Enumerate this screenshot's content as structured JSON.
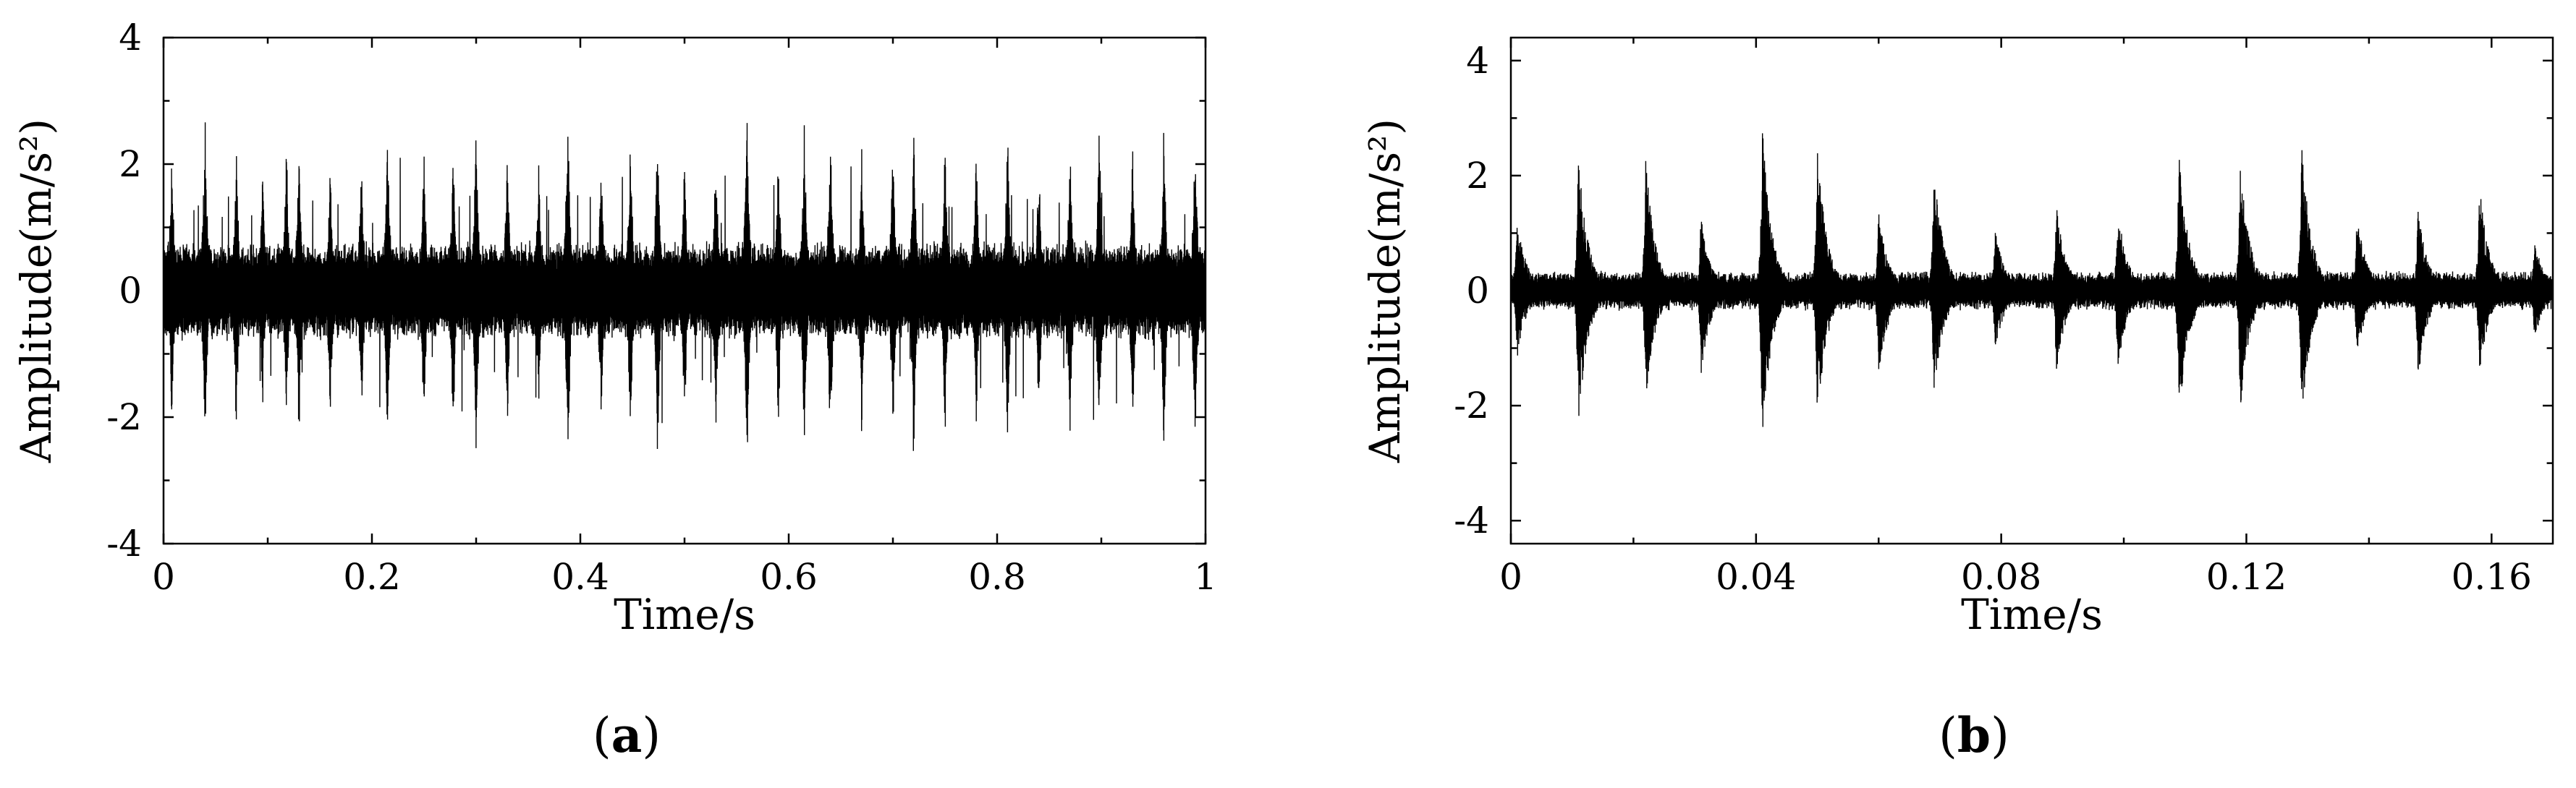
{
  "chart_data": [
    {
      "type": "line",
      "panel_label": "a",
      "xlabel": "Time/s",
      "ylabel": "Amplitude(m/s²)",
      "xlim": [
        0,
        1
      ],
      "ylim": [
        -4,
        4
      ],
      "x_ticks": [
        "0",
        "0.2",
        "0.4",
        "0.6",
        "0.8",
        "1"
      ],
      "x_tick_values": [
        0,
        0.2,
        0.4,
        0.6,
        0.8,
        1
      ],
      "y_ticks": [
        "4",
        "2",
        "0",
        "-2",
        "-4"
      ],
      "y_tick_values": [
        4,
        2,
        0,
        -2,
        -4
      ],
      "series": [
        {
          "signal": "vibration acceleration waveform",
          "duration": 1,
          "baseline_amplitude": 0.8,
          "peak_max": 3.3,
          "peak_min": -3.0,
          "impact_peaks": [
            {
              "t": 0.008,
              "a": 2.4
            },
            {
              "t": 0.04,
              "a": 2.95
            },
            {
              "t": 0.07,
              "a": 2.6
            },
            {
              "t": 0.095,
              "a": 2.1
            },
            {
              "t": 0.118,
              "a": 2.5
            },
            {
              "t": 0.13,
              "a": 2.7
            },
            {
              "t": 0.16,
              "a": 2.2
            },
            {
              "t": 0.19,
              "a": 2.3
            },
            {
              "t": 0.215,
              "a": 2.9
            },
            {
              "t": 0.25,
              "a": 2.5
            },
            {
              "t": 0.278,
              "a": 2.6
            },
            {
              "t": 0.3,
              "a": 2.95
            },
            {
              "t": 0.33,
              "a": 2.4
            },
            {
              "t": 0.36,
              "a": 2.2
            },
            {
              "t": 0.388,
              "a": 3.2
            },
            {
              "t": 0.42,
              "a": 2.5
            },
            {
              "t": 0.448,
              "a": 2.7
            },
            {
              "t": 0.474,
              "a": 3.0
            },
            {
              "t": 0.5,
              "a": 2.3
            },
            {
              "t": 0.53,
              "a": 2.6
            },
            {
              "t": 0.56,
              "a": 3.3
            },
            {
              "t": 0.59,
              "a": 2.5
            },
            {
              "t": 0.615,
              "a": 2.9
            },
            {
              "t": 0.64,
              "a": 2.95
            },
            {
              "t": 0.67,
              "a": 2.4
            },
            {
              "t": 0.7,
              "a": 2.6
            },
            {
              "t": 0.72,
              "a": 3.0
            },
            {
              "t": 0.75,
              "a": 2.6
            },
            {
              "t": 0.78,
              "a": 2.5
            },
            {
              "t": 0.81,
              "a": 3.0
            },
            {
              "t": 0.84,
              "a": 2.4
            },
            {
              "t": 0.87,
              "a": 2.6
            },
            {
              "t": 0.898,
              "a": 3.0
            },
            {
              "t": 0.93,
              "a": 2.5
            },
            {
              "t": 0.96,
              "a": 2.8
            },
            {
              "t": 0.99,
              "a": 2.9
            }
          ]
        }
      ],
      "grid": false,
      "legend": "none"
    },
    {
      "type": "line",
      "panel_label": "b",
      "xlabel": "Time/s",
      "ylabel": "Amplitude(m/s²)",
      "xlim": [
        0,
        0.17
      ],
      "ylim": [
        -4.4,
        4.4
      ],
      "x_ticks": [
        "0",
        "0.04",
        "0.08",
        "0.12",
        "0.16"
      ],
      "x_tick_values": [
        0,
        0.04,
        0.08,
        0.12,
        0.16
      ],
      "y_ticks": [
        "4",
        "2",
        "0",
        "-2",
        "-4"
      ],
      "y_tick_values": [
        4,
        2,
        0,
        -2,
        -4
      ],
      "series": [
        {
          "signal": "vibration acceleration waveform (zoomed)",
          "duration": 0.17,
          "baseline_amplitude": 0.35,
          "peak_max": 2.9,
          "peak_min": -2.6,
          "impact_bursts": [
            {
              "t": 0.001,
              "pos": 1.3,
              "neg": -1.2
            },
            {
              "t": 0.011,
              "pos": 2.4,
              "neg": -2.4
            },
            {
              "t": 0.022,
              "pos": 2.3,
              "neg": -2.0
            },
            {
              "t": 0.031,
              "pos": 1.3,
              "neg": -1.5
            },
            {
              "t": 0.041,
              "pos": 2.9,
              "neg": -2.6
            },
            {
              "t": 0.05,
              "pos": 2.6,
              "neg": -2.3
            },
            {
              "t": 0.06,
              "pos": 1.4,
              "neg": -1.6
            },
            {
              "t": 0.069,
              "pos": 2.3,
              "neg": -1.9
            },
            {
              "t": 0.079,
              "pos": 1.1,
              "neg": -1.1
            },
            {
              "t": 0.089,
              "pos": 1.6,
              "neg": -1.5
            },
            {
              "t": 0.099,
              "pos": 1.5,
              "neg": -1.4
            },
            {
              "t": 0.109,
              "pos": 2.5,
              "neg": -2.4
            },
            {
              "t": 0.119,
              "pos": 2.3,
              "neg": -2.1
            },
            {
              "t": 0.129,
              "pos": 2.7,
              "neg": -2.3
            },
            {
              "t": 0.138,
              "pos": 1.4,
              "neg": -1.2
            },
            {
              "t": 0.148,
              "pos": 1.5,
              "neg": -1.6
            },
            {
              "t": 0.158,
              "pos": 1.9,
              "neg": -1.5
            },
            {
              "t": 0.167,
              "pos": 0.9,
              "neg": -0.9
            }
          ]
        }
      ],
      "grid": false,
      "legend": "none"
    }
  ]
}
